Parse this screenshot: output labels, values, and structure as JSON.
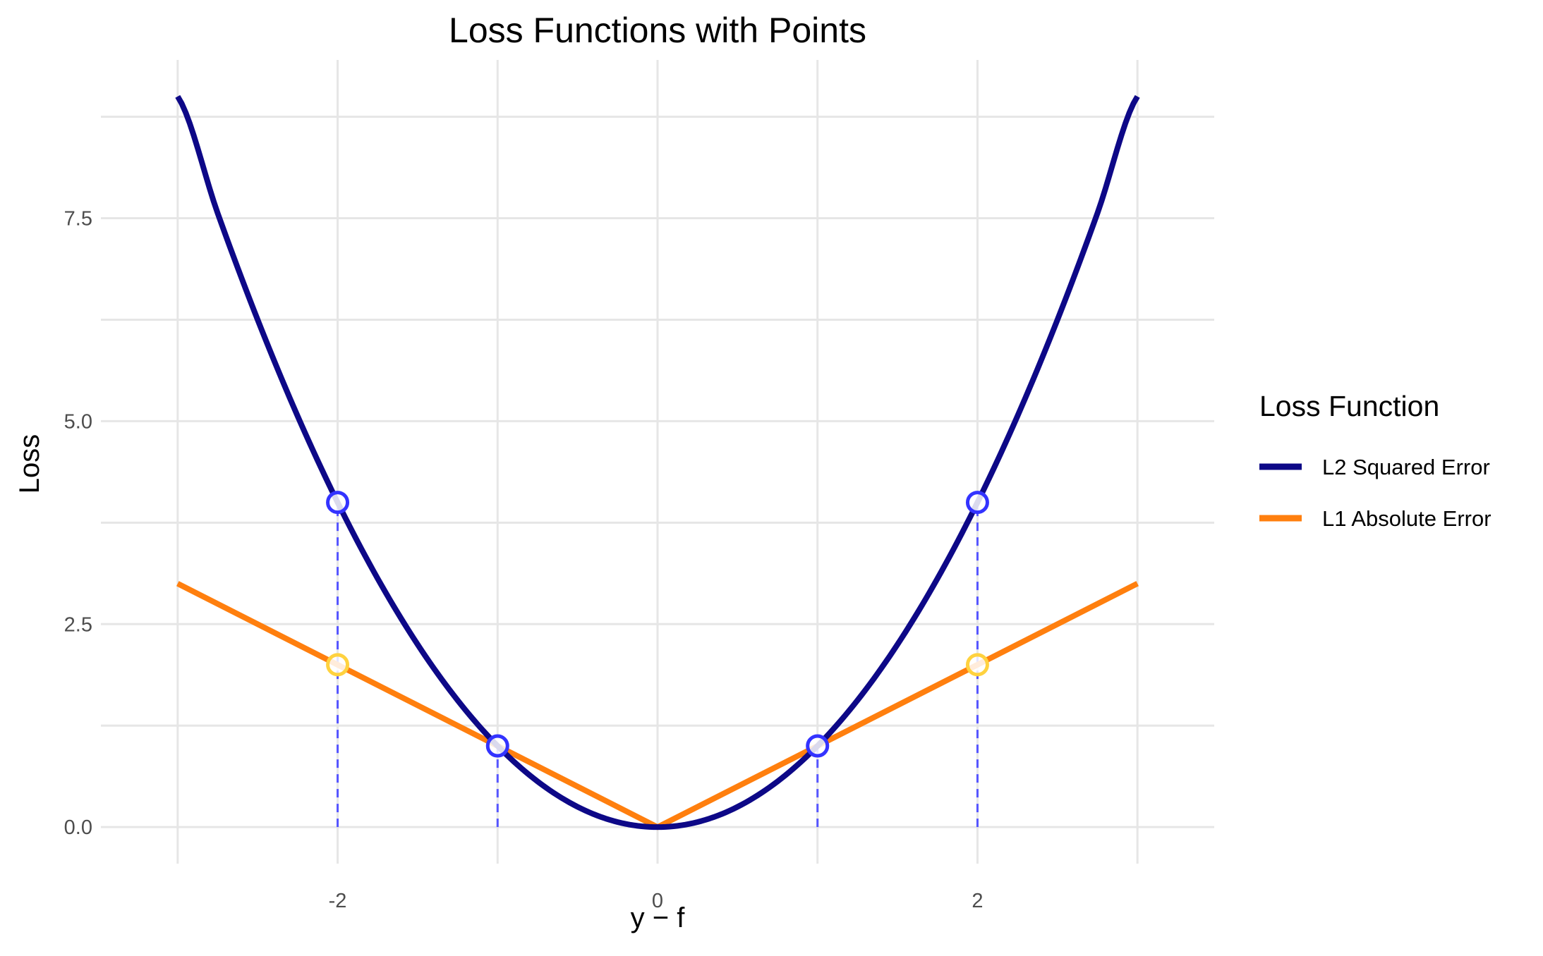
{
  "chart_data": {
    "type": "line",
    "title": "Loss Functions with Points",
    "xlabel": "y − f",
    "ylabel": "Loss",
    "xlim": [
      -3.48,
      3.48
    ],
    "ylim": [
      -0.45,
      9.45
    ],
    "x_ticks": [
      -2,
      0,
      2
    ],
    "x_tick_labels": [
      "-2",
      "0",
      "2"
    ],
    "y_ticks": [
      0,
      2.5,
      5,
      7.5
    ],
    "y_tick_labels": [
      "0.0",
      "2.5",
      "5.0",
      "7.5"
    ],
    "x_minor_grid": [
      -3,
      -1,
      1,
      3
    ],
    "y_minor_grid": [
      1.25,
      3.75,
      6.25,
      8.75
    ],
    "grid": true,
    "legend": {
      "title": "Loss Function",
      "position": "right"
    },
    "series": [
      {
        "name": "L2 Squared Error",
        "color": "#0d0887",
        "x": [
          -3.0,
          -2.75,
          -2.5,
          -2.25,
          -2.0,
          -1.75,
          -1.5,
          -1.25,
          -1.0,
          -0.75,
          -0.5,
          -0.25,
          0.0,
          0.25,
          0.5,
          0.75,
          1.0,
          1.25,
          1.5,
          1.75,
          2.0,
          2.25,
          2.5,
          2.75,
          3.0
        ],
        "y": [
          9.0,
          7.5625,
          6.25,
          5.0625,
          4.0,
          3.0625,
          2.25,
          1.5625,
          1.0,
          0.5625,
          0.25,
          0.0625,
          0.0,
          0.0625,
          0.25,
          0.5625,
          1.0,
          1.5625,
          2.25,
          3.0625,
          4.0,
          5.0625,
          6.25,
          7.5625,
          9.0
        ]
      },
      {
        "name": "L1 Absolute Error",
        "color": "#ff7f0e",
        "x": [
          -3.0,
          0.0,
          3.0
        ],
        "y": [
          3.0,
          0.0,
          3.0
        ]
      }
    ],
    "points": [
      {
        "x": -2,
        "y": 4,
        "color": "#3333ff"
      },
      {
        "x": -1,
        "y": 1,
        "color": "#3333ff"
      },
      {
        "x": 1,
        "y": 1,
        "color": "#3333ff"
      },
      {
        "x": 2,
        "y": 4,
        "color": "#3333ff"
      },
      {
        "x": -2,
        "y": 2,
        "color": "#ffd23f"
      },
      {
        "x": 2,
        "y": 2,
        "color": "#ffd23f"
      }
    ],
    "reference_lines": [
      {
        "x": -2,
        "y_from": 0,
        "y_to": 4,
        "style": "dashed",
        "color": "#5555ff"
      },
      {
        "x": -1,
        "y_from": 0,
        "y_to": 1,
        "style": "dashed",
        "color": "#5555ff"
      },
      {
        "x": 1,
        "y_from": 0,
        "y_to": 1,
        "style": "dashed",
        "color": "#5555ff"
      },
      {
        "x": 2,
        "y_from": 0,
        "y_to": 4,
        "style": "dashed",
        "color": "#5555ff"
      }
    ]
  }
}
